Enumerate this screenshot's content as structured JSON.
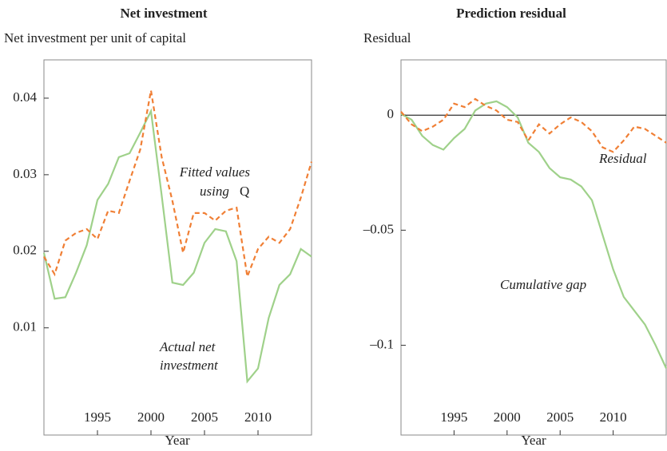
{
  "chart_data": [
    {
      "type": "line",
      "title": "Net investment",
      "ylabel": "Net investment per unit of capital",
      "xlabel": "Year",
      "x": [
        1990,
        1991,
        1992,
        1993,
        1994,
        1995,
        1996,
        1997,
        1998,
        1999,
        2000,
        2001,
        2002,
        2003,
        2004,
        2005,
        2006,
        2007,
        2008,
        2009,
        2010,
        2011,
        2012,
        2013,
        2014,
        2015
      ],
      "series": [
        {
          "name": "Actual net investment",
          "color": "#9fd18a",
          "dash": false,
          "values": [
            0.0198,
            0.0138,
            0.014,
            0.0172,
            0.0208,
            0.0267,
            0.0288,
            0.0323,
            0.0328,
            0.0355,
            0.0383,
            0.0273,
            0.0159,
            0.0156,
            0.0172,
            0.0211,
            0.0229,
            0.0226,
            0.0187,
            0.003,
            0.0047,
            0.0113,
            0.0156,
            0.017,
            0.0203,
            0.0193
          ]
        },
        {
          "name": "Fitted values using Q",
          "color": "#f07f35",
          "dash": true,
          "values": [
            0.0193,
            0.017,
            0.0214,
            0.0224,
            0.0229,
            0.0216,
            0.0253,
            0.025,
            0.0292,
            0.0333,
            0.041,
            0.0323,
            0.0266,
            0.0198,
            0.025,
            0.025,
            0.024,
            0.0253,
            0.0257,
            0.0167,
            0.0203,
            0.0219,
            0.0211,
            0.0229,
            0.027,
            0.0317
          ]
        }
      ],
      "annotations": [
        "Fitted values",
        "using",
        "Q",
        "Actual net",
        "investment"
      ],
      "xlim": [
        1990,
        2015
      ],
      "xticks": [
        1995,
        2000,
        2005,
        2010
      ],
      "ylim": [
        -0.004,
        0.045
      ],
      "yticks": [
        0.01,
        0.02,
        0.03,
        0.04
      ]
    },
    {
      "type": "line",
      "title": "Prediction residual",
      "ylabel": "Residual",
      "xlabel": "Year",
      "x": [
        1990,
        1991,
        1992,
        1993,
        1994,
        1995,
        1996,
        1997,
        1998,
        1999,
        2000,
        2001,
        2002,
        2003,
        2004,
        2005,
        2006,
        2007,
        2008,
        2009,
        2010,
        2011,
        2012,
        2013,
        2014,
        2015
      ],
      "series": [
        {
          "name": "Cumulative gap",
          "color": "#9fd18a",
          "dash": false,
          "values": [
            0.0005,
            -0.002,
            -0.009,
            -0.013,
            -0.015,
            -0.01,
            -0.006,
            0.002,
            0.005,
            0.006,
            0.0035,
            -0.001,
            -0.012,
            -0.016,
            -0.023,
            -0.027,
            -0.028,
            -0.031,
            -0.037,
            -0.052,
            -0.067,
            -0.079,
            -0.085,
            -0.091,
            -0.1,
            -0.11
          ]
        },
        {
          "name": "Residual",
          "color": "#f07f35",
          "dash": true,
          "values": [
            0.0015,
            -0.004,
            -0.007,
            -0.005,
            -0.002,
            0.005,
            0.0035,
            0.007,
            0.004,
            0.002,
            -0.002,
            -0.003,
            -0.011,
            -0.004,
            -0.008,
            -0.004,
            -0.001,
            -0.003,
            -0.007,
            -0.014,
            -0.016,
            -0.011,
            -0.005,
            -0.006,
            -0.009,
            -0.012
          ]
        }
      ],
      "annotations": [
        "Residual",
        "Cumulative gap"
      ],
      "hline": 0,
      "xlim": [
        1990,
        2015
      ],
      "xticks": [
        1995,
        2000,
        2005,
        2010
      ],
      "ylim": [
        -0.139,
        0.024
      ],
      "yticks": [
        {
          "value": -0.1,
          "label": "–0.1"
        },
        {
          "value": -0.05,
          "label": "–0.05"
        },
        0
      ]
    }
  ]
}
